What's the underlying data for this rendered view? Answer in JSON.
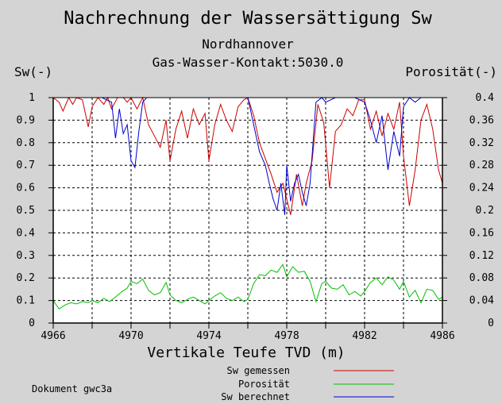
{
  "chart_data": {
    "type": "line",
    "title": "Nachrechnung der Wassersättigung Sw",
    "subtitle_lines": [
      "Nordhannover",
      "Gas-Wasser-Kontakt:5030.0"
    ],
    "left_axis_title": "Sw(-)",
    "right_axis_title": "Porosität(-)",
    "xlabel": "Vertikale Teufe TVD (m)",
    "xlim": [
      4966,
      4986
    ],
    "ylim_left": [
      0,
      1
    ],
    "ylim_right": [
      0,
      0.4
    ],
    "x_ticks": [
      4966,
      4968,
      4970,
      4972,
      4974,
      4976,
      4978,
      4980,
      4982,
      4984,
      4986
    ],
    "x_tick_labels": [
      "4966",
      "4970",
      "4974",
      "4978",
      "4982",
      "4986"
    ],
    "y_left_ticks": [
      "0",
      "0.1",
      "0.2",
      "0.3",
      "0.4",
      "0.5",
      "0.6",
      "0.7",
      "0.8",
      "0.9",
      "1"
    ],
    "y_right_ticks": [
      "0",
      "0.04",
      "0.08",
      "0.12",
      "0.16",
      "0.2",
      "0.24",
      "0.28",
      "0.32",
      "0.36",
      "0.4"
    ],
    "grid": true,
    "legend_position": "bottom-right",
    "footer_note": "Dokument gwc3a",
    "series": [
      {
        "name": "Sw gemessen",
        "axis": "left",
        "color": "#cc0000",
        "x": [
          4966.0,
          4966.3,
          4966.5,
          4966.8,
          4967.0,
          4967.2,
          4967.5,
          4967.8,
          4968.0,
          4968.3,
          4968.6,
          4968.8,
          4969.0,
          4969.3,
          4969.6,
          4969.8,
          4970.0,
          4970.3,
          4970.6,
          4970.9,
          4971.2,
          4971.5,
          4971.8,
          4972.0,
          4972.3,
          4972.6,
          4972.9,
          4973.2,
          4973.5,
          4973.8,
          4974.0,
          4974.3,
          4974.6,
          4974.9,
          4975.2,
          4975.5,
          4975.8,
          4976.0,
          4976.3,
          4976.6,
          4976.9,
          4977.2,
          4977.5,
          4977.8,
          4978.0,
          4978.2,
          4978.5,
          4978.8,
          4979.0,
          4979.3,
          4979.6,
          4979.9,
          4980.2,
          4980.5,
          4980.8,
          4981.1,
          4981.4,
          4981.7,
          4982.0,
          4982.3,
          4982.6,
          4982.9,
          4983.2,
          4983.5,
          4983.8,
          4984.0,
          4984.3,
          4984.6,
          4984.9,
          4985.2,
          4985.5,
          4985.8,
          4986.0
        ],
        "y": [
          1.0,
          0.98,
          0.94,
          1.0,
          0.97,
          1.0,
          0.99,
          0.87,
          0.96,
          1.0,
          0.97,
          1.0,
          0.95,
          1.0,
          1.0,
          0.98,
          1.0,
          0.95,
          1.0,
          0.88,
          0.83,
          0.78,
          0.9,
          0.72,
          0.86,
          0.94,
          0.82,
          0.95,
          0.88,
          0.93,
          0.72,
          0.88,
          0.97,
          0.9,
          0.85,
          0.96,
          0.99,
          1.0,
          0.92,
          0.8,
          0.73,
          0.66,
          0.58,
          0.62,
          0.55,
          0.48,
          0.66,
          0.52,
          0.62,
          0.72,
          0.97,
          0.89,
          0.6,
          0.85,
          0.88,
          0.95,
          0.92,
          0.99,
          0.99,
          0.86,
          0.94,
          0.83,
          0.93,
          0.86,
          0.98,
          0.74,
          0.52,
          0.68,
          0.9,
          0.97,
          0.86,
          0.68,
          0.62
        ]
      },
      {
        "name": "Porosität",
        "axis": "right",
        "color": "#00c000",
        "x": [
          4966.0,
          4966.3,
          4966.6,
          4966.9,
          4967.2,
          4967.5,
          4967.8,
          4968.0,
          4968.3,
          4968.6,
          4968.9,
          4969.2,
          4969.5,
          4969.8,
          4970.0,
          4970.3,
          4970.6,
          4970.9,
          4971.2,
          4971.5,
          4971.8,
          4972.0,
          4972.3,
          4972.6,
          4972.9,
          4973.2,
          4973.5,
          4973.8,
          4974.0,
          4974.3,
          4974.6,
          4974.9,
          4975.2,
          4975.5,
          4975.8,
          4976.0,
          4976.3,
          4976.6,
          4976.9,
          4977.2,
          4977.5,
          4977.8,
          4978.0,
          4978.3,
          4978.6,
          4978.9,
          4979.2,
          4979.5,
          4979.8,
          4980.0,
          4980.3,
          4980.6,
          4980.9,
          4981.2,
          4981.5,
          4981.8,
          4982.0,
          4982.3,
          4982.6,
          4982.9,
          4983.2,
          4983.5,
          4983.8,
          4984.0,
          4984.3,
          4984.6,
          4984.9,
          4985.2,
          4985.5,
          4985.8,
          4986.0
        ],
        "y": [
          0.04,
          0.025,
          0.032,
          0.036,
          0.034,
          0.038,
          0.036,
          0.04,
          0.036,
          0.044,
          0.038,
          0.046,
          0.055,
          0.062,
          0.074,
          0.07,
          0.078,
          0.058,
          0.05,
          0.054,
          0.072,
          0.05,
          0.04,
          0.036,
          0.042,
          0.046,
          0.04,
          0.034,
          0.04,
          0.048,
          0.054,
          0.044,
          0.04,
          0.046,
          0.038,
          0.042,
          0.07,
          0.086,
          0.084,
          0.094,
          0.09,
          0.104,
          0.082,
          0.1,
          0.09,
          0.092,
          0.074,
          0.038,
          0.07,
          0.074,
          0.062,
          0.06,
          0.068,
          0.05,
          0.056,
          0.048,
          0.056,
          0.072,
          0.08,
          0.068,
          0.082,
          0.076,
          0.06,
          0.074,
          0.046,
          0.058,
          0.036,
          0.06,
          0.058,
          0.042,
          0.046
        ]
      },
      {
        "name": "Sw berechnet",
        "axis": "left",
        "color": "#0000cc",
        "x": [
          4966.0,
          4966.5,
          4967.0,
          4967.5,
          4968.0,
          4968.5,
          4969.0,
          4969.2,
          4969.4,
          4969.6,
          4969.8,
          4970.0,
          4970.2,
          4970.4,
          4970.6,
          4970.8,
          4971.0,
          4971.5,
          4972.0,
          4972.5,
          4973.0,
          4973.5,
          4974.0,
          4974.5,
          4975.0,
          4975.5,
          4976.0,
          4976.3,
          4976.6,
          4976.9,
          4977.1,
          4977.3,
          4977.5,
          4977.7,
          4977.9,
          4978.0,
          4978.2,
          4978.4,
          4978.6,
          4978.8,
          4979.0,
          4979.2,
          4979.5,
          4979.8,
          4980.0,
          4980.5,
          4981.0,
          4981.5,
          4982.0,
          4982.3,
          4982.6,
          4982.9,
          4983.2,
          4983.5,
          4983.8,
          4984.0,
          4984.3,
          4984.6,
          4984.9,
          4985.2,
          4985.5,
          4986.0
        ],
        "y": [
          1.0,
          1.0,
          1.0,
          1.0,
          1.0,
          1.0,
          0.98,
          0.82,
          0.95,
          0.84,
          0.88,
          0.72,
          0.69,
          0.85,
          0.98,
          1.0,
          1.0,
          1.0,
          1.0,
          1.0,
          1.0,
          1.0,
          1.0,
          1.0,
          1.0,
          1.0,
          1.0,
          0.88,
          0.76,
          0.7,
          0.62,
          0.55,
          0.5,
          0.62,
          0.48,
          0.7,
          0.54,
          0.62,
          0.66,
          0.58,
          0.52,
          0.62,
          0.98,
          1.0,
          0.98,
          1.0,
          1.0,
          1.0,
          0.98,
          0.9,
          0.8,
          0.92,
          0.68,
          0.85,
          0.74,
          0.96,
          1.0,
          0.98,
          1.0,
          1.0,
          1.0,
          1.0
        ]
      }
    ]
  }
}
